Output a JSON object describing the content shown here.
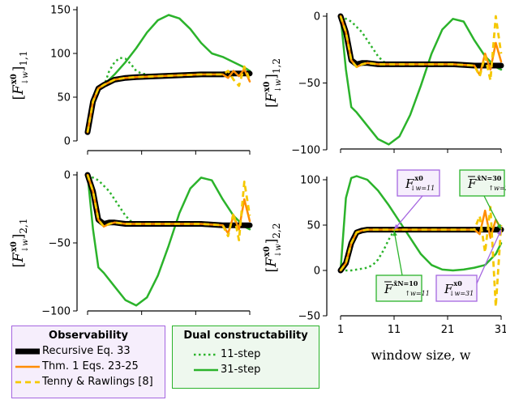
{
  "chart_data": [
    {
      "type": "line",
      "panel": "top-left",
      "ylabel": "[F↓w^x0]1,1",
      "ylabel_main": "F",
      "ylabel_sub": "↓w",
      "ylabel_sup": "x0",
      "ylabel_idx": "1,1",
      "ylim": [
        0,
        150
      ],
      "yticks": [
        0,
        50,
        100,
        150
      ],
      "xlim": [
        1,
        31
      ],
      "series": [
        {
          "name": "Recursive Eq. 33",
          "x": [
            1,
            2,
            3,
            4,
            5,
            6,
            8,
            10,
            14,
            18,
            22,
            26,
            28,
            30,
            31
          ],
          "y": [
            10,
            45,
            60,
            64,
            67,
            70,
            72,
            73,
            74,
            75,
            76,
            76,
            77,
            77,
            77
          ]
        },
        {
          "name": "Thm. 1 Eqs. 23-25",
          "x": [
            1,
            2,
            3,
            4,
            5,
            6,
            8,
            10,
            14,
            18,
            22,
            26,
            27,
            28,
            29,
            30,
            31
          ],
          "y": [
            10,
            45,
            60,
            64,
            67,
            70,
            72,
            73,
            74,
            75,
            76,
            76,
            72,
            80,
            74,
            82,
            68
          ]
        },
        {
          "name": "Tenny & Rawlings [8]",
          "x": [
            1,
            2,
            3,
            4,
            5,
            6,
            8,
            10,
            14,
            18,
            22,
            26,
            27,
            28,
            29,
            30,
            31
          ],
          "y": [
            10,
            45,
            60,
            64,
            67,
            70,
            72,
            73,
            74,
            75,
            76,
            76,
            80,
            70,
            63,
            85,
            70
          ]
        },
        {
          "name": "11-step",
          "x": [
            4,
            5,
            6,
            7,
            8,
            9,
            10,
            11,
            12
          ],
          "y": [
            62,
            80,
            90,
            95,
            94,
            88,
            80,
            77,
            76
          ]
        },
        {
          "name": "31-step",
          "x": [
            1,
            2,
            3,
            4,
            6,
            8,
            10,
            12,
            14,
            16,
            18,
            20,
            22,
            24,
            26,
            28,
            30,
            31
          ],
          "y": [
            10,
            42,
            58,
            64,
            76,
            90,
            106,
            124,
            138,
            144,
            140,
            128,
            112,
            100,
            96,
            90,
            84,
            80
          ]
        }
      ]
    },
    {
      "type": "line",
      "panel": "top-right",
      "ylabel": "[F↓w^x0]1,2",
      "ylabel_main": "F",
      "ylabel_sub": "↓w",
      "ylabel_sup": "x0",
      "ylabel_idx": "1,2",
      "ylim": [
        -100,
        0
      ],
      "yticks": [
        -100,
        -50,
        0
      ],
      "xlim": [
        1,
        31
      ],
      "series": [
        {
          "name": "Recursive Eq. 33",
          "x": [
            1,
            2,
            3,
            4,
            5,
            6,
            8,
            10,
            14,
            18,
            22,
            26,
            28,
            30,
            31
          ],
          "y": [
            0,
            -12,
            -33,
            -36,
            -35,
            -35,
            -36,
            -36,
            -36,
            -36,
            -36,
            -37,
            -37,
            -37,
            -37
          ]
        },
        {
          "name": "Thm. 1 Eqs. 23-25",
          "x": [
            1,
            2,
            3,
            4,
            5,
            6,
            8,
            10,
            14,
            18,
            22,
            26,
            27,
            28,
            29,
            30,
            31
          ],
          "y": [
            0,
            -12,
            -33,
            -38,
            -36,
            -35,
            -36,
            -36,
            -36,
            -36,
            -36,
            -37,
            -44,
            -28,
            -40,
            -20,
            -34
          ]
        },
        {
          "name": "Tenny & Rawlings [8]",
          "x": [
            1,
            2,
            3,
            4,
            5,
            6,
            8,
            10,
            14,
            18,
            22,
            26,
            27,
            28,
            29,
            30,
            31
          ],
          "y": [
            0,
            -12,
            -33,
            -38,
            -36,
            -35,
            -36,
            -36,
            -36,
            -36,
            -36,
            -37,
            -45,
            -30,
            -48,
            0,
            -28
          ]
        },
        {
          "name": "11-step",
          "x": [
            1,
            2,
            3,
            4,
            5,
            6,
            7,
            8,
            9,
            10,
            11
          ],
          "y": [
            0,
            -2,
            -4,
            -8,
            -12,
            -18,
            -24,
            -30,
            -34,
            -36,
            -36
          ]
        },
        {
          "name": "31-step",
          "x": [
            1,
            2,
            3,
            4,
            6,
            8,
            10,
            12,
            14,
            16,
            18,
            20,
            22,
            24,
            26,
            28,
            30,
            31
          ],
          "y": [
            0,
            -40,
            -68,
            -72,
            -82,
            -92,
            -96,
            -90,
            -74,
            -52,
            -28,
            -10,
            -2,
            -4,
            -18,
            -30,
            -38,
            -40
          ]
        }
      ]
    },
    {
      "type": "line",
      "panel": "bottom-left",
      "ylabel": "[F↓w^x0]2,1",
      "ylabel_main": "F",
      "ylabel_sub": "↓w",
      "ylabel_sup": "x0",
      "ylabel_idx": "2,1",
      "ylim": [
        -100,
        0
      ],
      "yticks": [
        -100,
        -50,
        0
      ],
      "xlim": [
        1,
        31
      ],
      "series": [
        {
          "name": "Recursive Eq. 33",
          "x": [
            1,
            2,
            3,
            4,
            5,
            6,
            8,
            10,
            14,
            18,
            22,
            26,
            28,
            30,
            31
          ],
          "y": [
            0,
            -12,
            -33,
            -36,
            -35,
            -35,
            -36,
            -36,
            -36,
            -36,
            -36,
            -37,
            -37,
            -37,
            -37
          ]
        },
        {
          "name": "Thm. 1 Eqs. 23-25",
          "x": [
            1,
            2,
            3,
            4,
            5,
            6,
            8,
            10,
            14,
            18,
            22,
            26,
            27,
            28,
            29,
            30,
            31
          ],
          "y": [
            0,
            -12,
            -33,
            -38,
            -36,
            -35,
            -36,
            -36,
            -36,
            -36,
            -36,
            -37,
            -43,
            -30,
            -40,
            -18,
            -34
          ]
        },
        {
          "name": "Tenny & Rawlings [8]",
          "x": [
            1,
            2,
            3,
            4,
            5,
            6,
            8,
            10,
            14,
            18,
            22,
            26,
            27,
            28,
            29,
            30,
            31
          ],
          "y": [
            0,
            -12,
            -33,
            -38,
            -36,
            -35,
            -36,
            -36,
            -36,
            -36,
            -36,
            -37,
            -45,
            -28,
            -48,
            -5,
            -30
          ]
        },
        {
          "name": "11-step",
          "x": [
            1,
            2,
            3,
            4,
            5,
            6,
            7,
            8,
            9,
            10,
            11
          ],
          "y": [
            0,
            -2,
            -4,
            -8,
            -12,
            -18,
            -24,
            -30,
            -34,
            -36,
            -36
          ]
        },
        {
          "name": "31-step",
          "x": [
            1,
            2,
            3,
            4,
            6,
            8,
            10,
            12,
            14,
            16,
            18,
            20,
            22,
            24,
            26,
            28,
            30,
            31
          ],
          "y": [
            0,
            -40,
            -68,
            -72,
            -82,
            -92,
            -96,
            -90,
            -74,
            -52,
            -28,
            -10,
            -2,
            -4,
            -18,
            -30,
            -38,
            -40
          ]
        }
      ]
    },
    {
      "type": "line",
      "panel": "bottom-right",
      "ylabel": "[F↓w^x0]2,2",
      "ylabel_main": "F",
      "ylabel_sub": "↓w",
      "ylabel_sup": "x0",
      "ylabel_idx": "2,2",
      "xlabel": "window size, w",
      "ylim": [
        -50,
        100
      ],
      "yticks": [
        -50,
        0,
        50,
        100
      ],
      "xlim": [
        1,
        31
      ],
      "xticks": [
        1,
        11,
        21,
        31
      ],
      "series": [
        {
          "name": "Recursive Eq. 33",
          "x": [
            1,
            2,
            3,
            4,
            5,
            6,
            8,
            10,
            14,
            18,
            22,
            26,
            28,
            30,
            31
          ],
          "y": [
            0,
            8,
            30,
            42,
            44,
            45,
            45,
            45,
            45,
            45,
            45,
            45,
            45,
            45,
            45
          ]
        },
        {
          "name": "Thm. 1 Eqs. 23-25",
          "x": [
            1,
            2,
            3,
            4,
            5,
            6,
            8,
            10,
            14,
            18,
            22,
            26,
            27,
            28,
            29,
            30,
            31
          ],
          "y": [
            0,
            8,
            30,
            42,
            44,
            45,
            45,
            45,
            45,
            45,
            45,
            45,
            40,
            66,
            36,
            56,
            46
          ]
        },
        {
          "name": "Tenny & Rawlings [8]",
          "x": [
            1,
            2,
            3,
            4,
            5,
            6,
            8,
            10,
            14,
            18,
            22,
            26,
            27,
            28,
            29,
            30,
            31
          ],
          "y": [
            0,
            8,
            30,
            42,
            44,
            45,
            45,
            45,
            45,
            45,
            45,
            45,
            60,
            20,
            70,
            -40,
            50
          ]
        },
        {
          "name": "11-step",
          "x": [
            1,
            2,
            3,
            4,
            5,
            6,
            7,
            8,
            9,
            10,
            11
          ],
          "y": [
            0,
            0,
            0,
            1,
            2,
            3,
            6,
            12,
            22,
            34,
            44
          ]
        },
        {
          "name": "31-step",
          "x": [
            1,
            2,
            3,
            4,
            6,
            8,
            10,
            12,
            14,
            16,
            18,
            20,
            22,
            24,
            26,
            28,
            30,
            31
          ],
          "y": [
            0,
            80,
            102,
            104,
            100,
            88,
            72,
            54,
            36,
            18,
            6,
            1,
            0,
            1,
            3,
            6,
            18,
            30
          ]
        }
      ],
      "annotations": [
        {
          "id": "ann1",
          "main": "F",
          "sub": "↓w=11",
          "sup": "x0",
          "bar": false,
          "style": "observability",
          "target": [
            11,
            45
          ]
        },
        {
          "id": "ann2",
          "main": "F",
          "sub": "↑w=11",
          "sup": "x̄N=10",
          "bar": true,
          "style": "dual",
          "target": [
            11,
            44
          ]
        },
        {
          "id": "ann3",
          "main": "F",
          "sub": "↑w=31",
          "sup": "x̄N=30",
          "bar": true,
          "style": "dual",
          "target": [
            31,
            45
          ]
        },
        {
          "id": "ann4",
          "main": "F",
          "sub": "↓w=31",
          "sup": "x0",
          "bar": false,
          "style": "observability",
          "target": [
            31,
            45
          ]
        }
      ]
    }
  ],
  "legends": {
    "observability": {
      "title": "Observability",
      "items": [
        {
          "label": "Recursive Eq. 33",
          "series": "Recursive Eq. 33"
        },
        {
          "label": "Thm. 1 Eqs. 23-25",
          "series": "Thm. 1 Eqs. 23-25"
        },
        {
          "label": "Tenny & Rawlings [8]",
          "series": "Tenny & Rawlings [8]"
        }
      ]
    },
    "dual": {
      "title": "Dual constructability",
      "items": [
        {
          "label": "11-step",
          "series": "11-step"
        },
        {
          "label": "31-step",
          "series": "31-step"
        }
      ]
    }
  },
  "styles": {
    "Recursive Eq. 33": {
      "color": "#000000",
      "dash": "",
      "width": 7
    },
    "Thm. 1 Eqs. 23-25": {
      "color": "#ff8c00",
      "dash": "",
      "width": 2.5
    },
    "Tenny & Rawlings [8]": {
      "color": "#f5c800",
      "dash": "7,5",
      "width": 2.8
    },
    "11-step": {
      "color": "#2bb32b",
      "dash": "2.5,3.5",
      "width": 2.5
    },
    "31-step": {
      "color": "#2bb32b",
      "dash": "",
      "width": 2.5
    },
    "observability_box": {
      "fill": "#f6eefc",
      "stroke": "#a566e0"
    },
    "dual_box": {
      "fill": "#eef8ee",
      "stroke": "#2bb32b"
    }
  }
}
